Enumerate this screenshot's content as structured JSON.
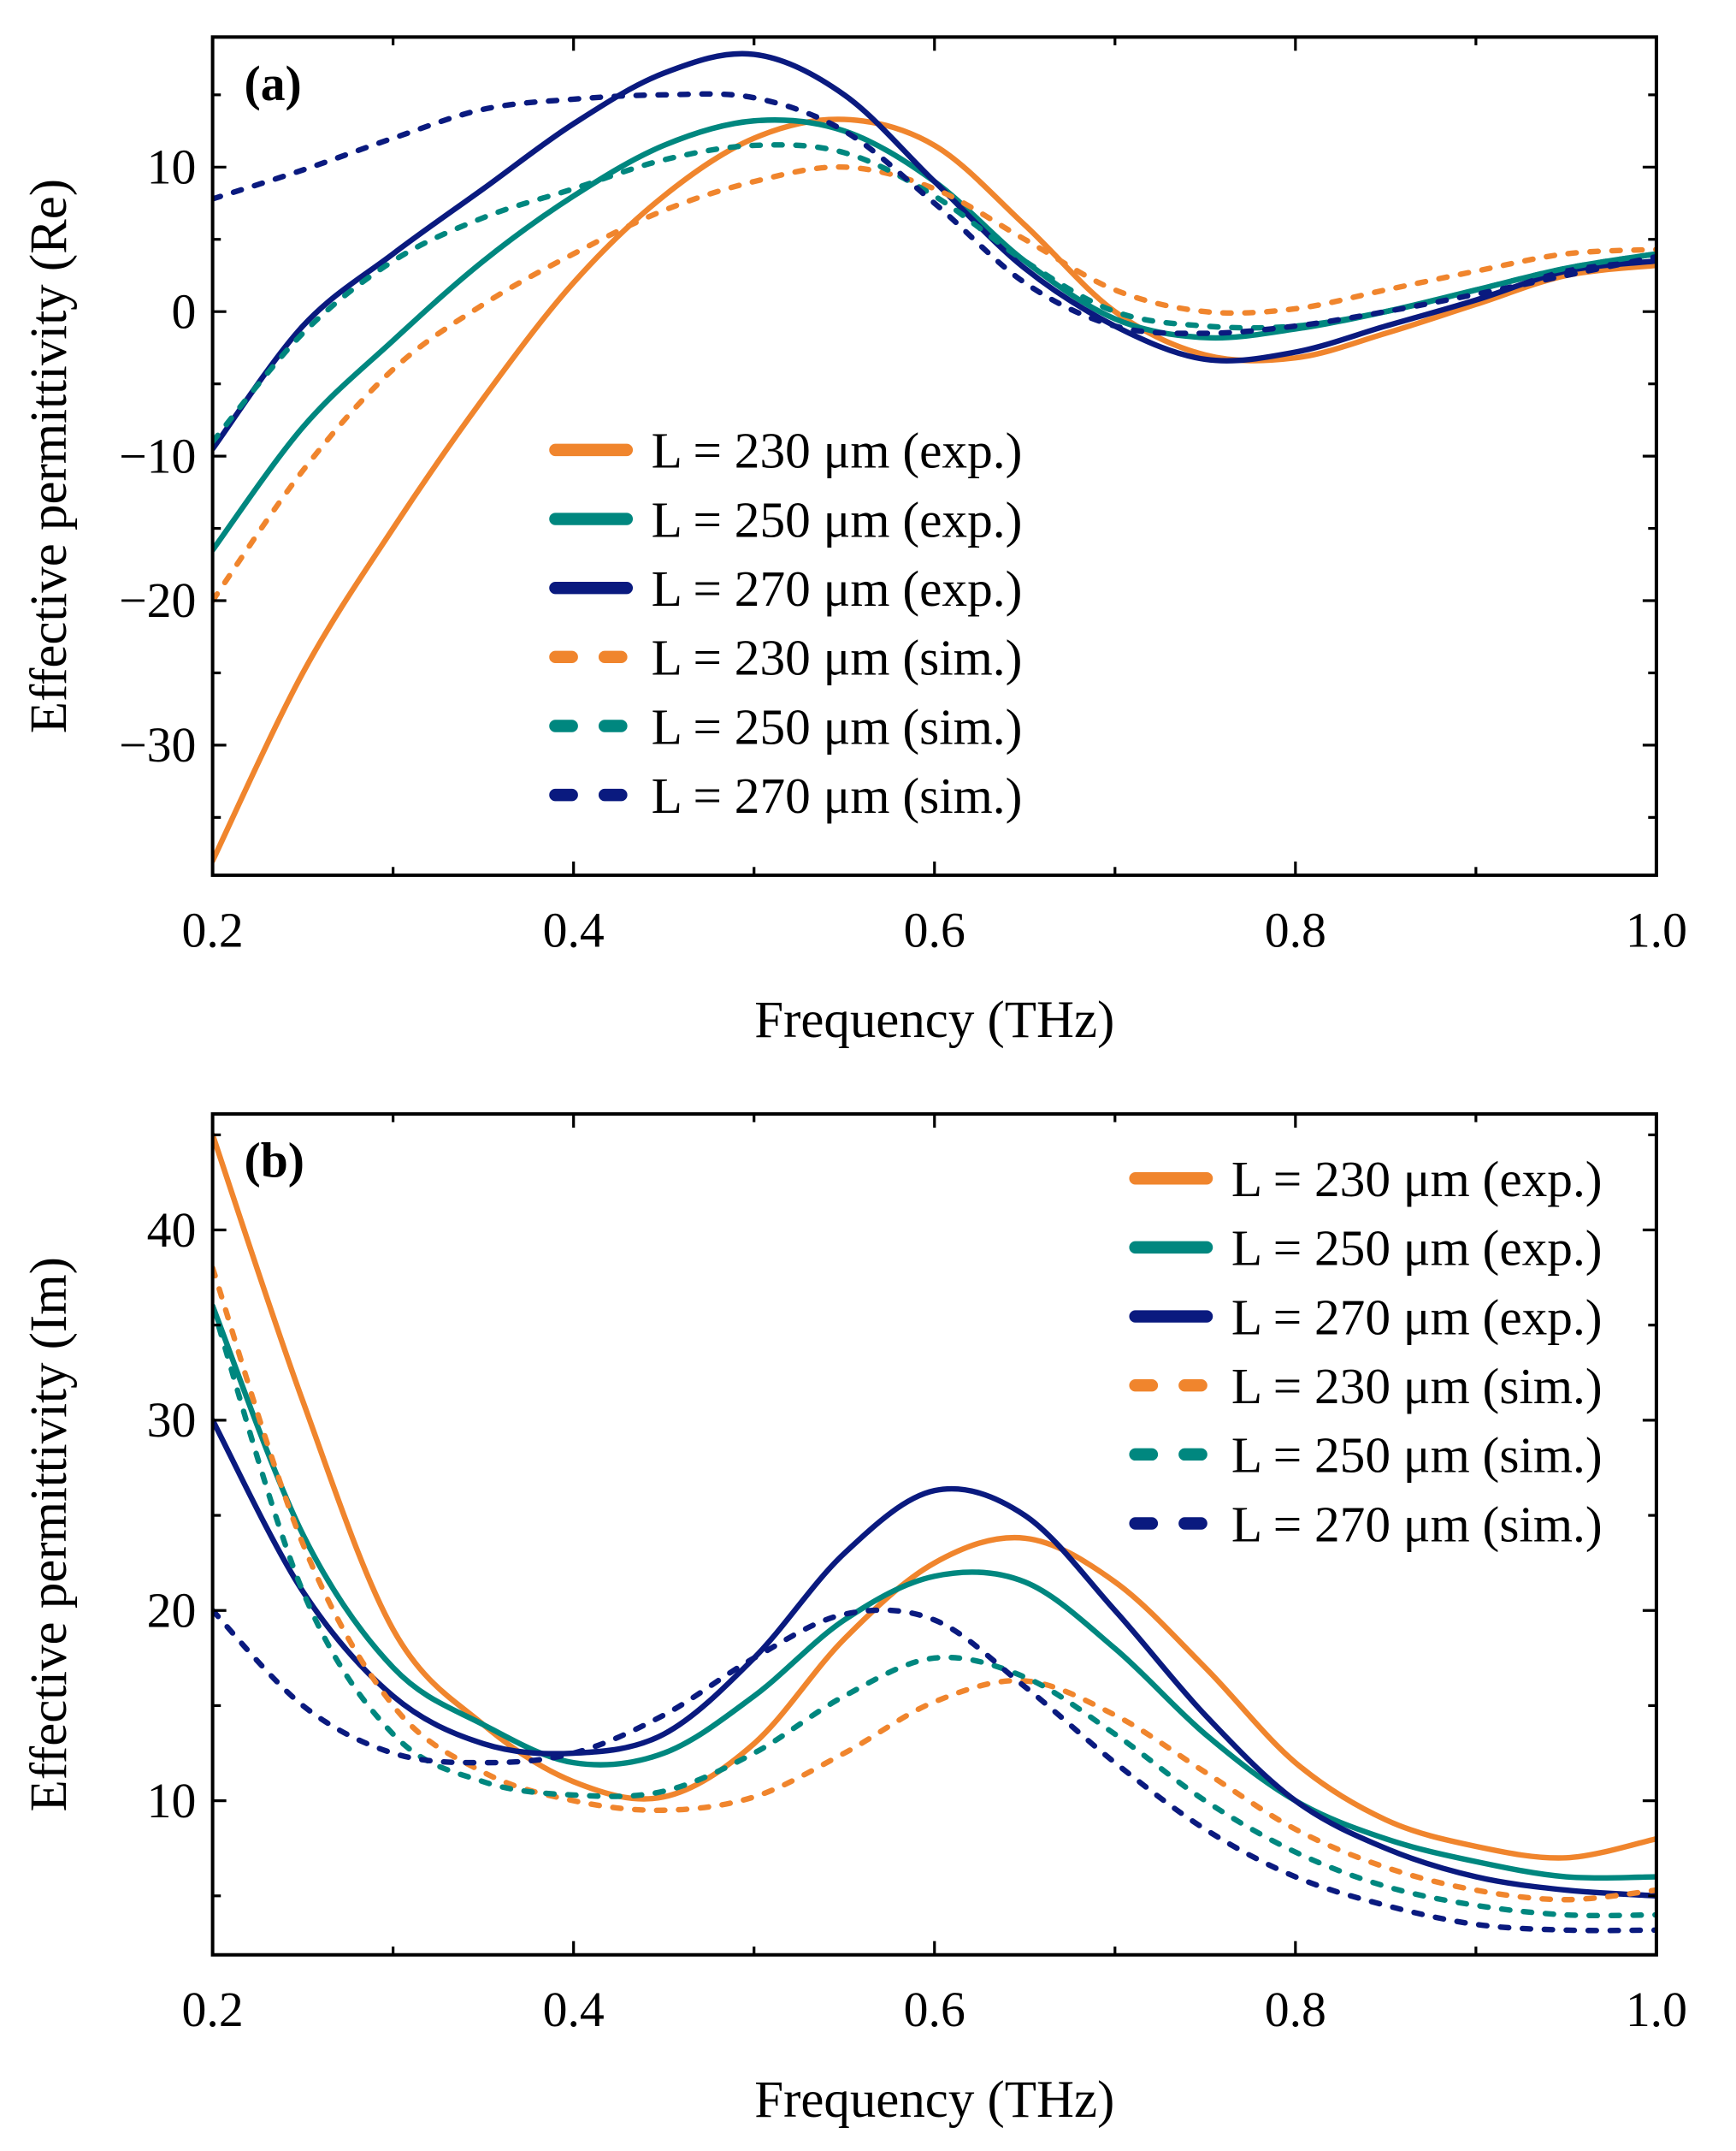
{
  "chart_data": [
    {
      "type": "line",
      "panel_label": "(a)",
      "xlabel": "Frequency (THz)",
      "ylabel": "Effective permittivity (Re)",
      "xlim": [
        0.2,
        1.0
      ],
      "ylim": [
        -39,
        19
      ],
      "xticks": [
        0.2,
        0.4,
        0.6,
        0.8,
        1.0
      ],
      "xtick_labels": [
        "0.2",
        "0.4",
        "0.6",
        "0.8",
        "1.0"
      ],
      "yticks": [
        -30,
        -20,
        -10,
        0,
        10
      ],
      "ytick_labels": [
        "−30",
        "−20",
        "−10",
        "0",
        "10"
      ],
      "legend_position": "center",
      "x": [
        0.2,
        0.25,
        0.3,
        0.35,
        0.4,
        0.45,
        0.5,
        0.55,
        0.6,
        0.65,
        0.7,
        0.75,
        0.8,
        0.85,
        0.9,
        0.95,
        1.0
      ],
      "series": [
        {
          "name": "L = 230 μm (exp.)",
          "color": "#F0852D",
          "dashed": false,
          "values": [
            -38,
            -25,
            -15,
            -6,
            2,
            8,
            12,
            13.3,
            11.5,
            6,
            0,
            -3,
            -3.2,
            -1.5,
            0.5,
            2.5,
            3.2
          ]
        },
        {
          "name": "L = 250 μm (exp.)",
          "color": "#00877F",
          "dashed": false,
          "values": [
            -16.5,
            -8,
            -2,
            3.5,
            8,
            11.5,
            13.2,
            12.5,
            9,
            3.5,
            -0.5,
            -1.8,
            -1.2,
            0,
            1.5,
            3,
            4
          ]
        },
        {
          "name": "L = 270 μm (exp.)",
          "color": "#0A1A7F",
          "dashed": false,
          "values": [
            -9.5,
            -1,
            4,
            8.5,
            13,
            16.5,
            17.8,
            15,
            9,
            3,
            -1,
            -3.3,
            -2.8,
            -1,
            0.8,
            2.8,
            3.5
          ]
        },
        {
          "name": "L = 230 μm (sim.)",
          "color": "#F0852D",
          "dashed": true,
          "values": [
            -20,
            -11,
            -4,
            0.5,
            4,
            7,
            9,
            10,
            8.5,
            5,
            1.5,
            0,
            0.2,
            1.5,
            2.8,
            4,
            4.3
          ]
        },
        {
          "name": "L = 250 μm (sim.)",
          "color": "#00877F",
          "dashed": true,
          "values": [
            -9,
            -1.5,
            3.5,
            6.5,
            8.5,
            10.5,
            11.5,
            11,
            8,
            3.5,
            0,
            -1,
            -1,
            0,
            1.5,
            3,
            4
          ]
        },
        {
          "name": "L = 270 μm (sim.)",
          "color": "#0A1A7F",
          "dashed": true,
          "values": [
            7.8,
            9.8,
            12,
            14,
            14.7,
            15,
            14.8,
            12.5,
            7.5,
            2,
            -1,
            -1.5,
            -1,
            0,
            1.2,
            2.5,
            3.8
          ]
        }
      ]
    },
    {
      "type": "line",
      "panel_label": "(b)",
      "xlabel": "Frequency (THz)",
      "ylabel": "Effective permittivity (Im)",
      "xlim": [
        0.2,
        1.0
      ],
      "ylim": [
        1.9,
        46.1
      ],
      "xticks": [
        0.2,
        0.4,
        0.6,
        0.8,
        1.0
      ],
      "xtick_labels": [
        "0.2",
        "0.4",
        "0.6",
        "0.8",
        "1.0"
      ],
      "yticks": [
        10,
        20,
        30,
        40
      ],
      "ytick_labels": [
        "10",
        "20",
        "30",
        "40"
      ],
      "legend_position": "top-right",
      "x": [
        0.2,
        0.25,
        0.3,
        0.35,
        0.4,
        0.45,
        0.5,
        0.55,
        0.6,
        0.65,
        0.7,
        0.75,
        0.8,
        0.85,
        0.9,
        0.95,
        1.0
      ],
      "series": [
        {
          "name": "L = 230 μm (exp.)",
          "color": "#F0852D",
          "dashed": false,
          "values": [
            45,
            31,
            19,
            14,
            11,
            10.2,
            13,
            18.5,
            22.5,
            23.8,
            21.5,
            17,
            12,
            9,
            7.6,
            7,
            8
          ]
        },
        {
          "name": "L = 250 μm (exp.)",
          "color": "#00877F",
          "dashed": false,
          "values": [
            36,
            24,
            17,
            14,
            12,
            12.5,
            15.5,
            19.5,
            21.8,
            21.5,
            18,
            13.5,
            10,
            8,
            6.8,
            6,
            6
          ]
        },
        {
          "name": "L = 270 μm (exp.)",
          "color": "#0A1A7F",
          "dashed": false,
          "values": [
            30,
            21,
            15.5,
            13,
            12.5,
            13.5,
            17.5,
            23,
            26.3,
            25,
            20,
            14.5,
            10,
            7.5,
            6,
            5.3,
            5
          ]
        },
        {
          "name": "L = 230 μm (sim.)",
          "color": "#F0852D",
          "dashed": true,
          "values": [
            38,
            23.5,
            15,
            11.5,
            10,
            9.5,
            10.2,
            12.5,
            15.2,
            16.3,
            14.5,
            11.5,
            8.5,
            6.5,
            5.3,
            4.8,
            5.3
          ]
        },
        {
          "name": "L = 250 μm (sim.)",
          "color": "#00877F",
          "dashed": true,
          "values": [
            36,
            21,
            13.5,
            11,
            10.3,
            10.5,
            12.5,
            15.5,
            17.5,
            16.5,
            13.5,
            10,
            7.3,
            5.5,
            4.5,
            4,
            4
          ]
        },
        {
          "name": "L = 270 μm (sim.)",
          "color": "#0A1A7F",
          "dashed": true,
          "values": [
            20,
            15,
            12.5,
            12,
            12.5,
            14.5,
            17.5,
            19.8,
            19.5,
            16,
            12,
            8.5,
            6,
            4.5,
            3.5,
            3.2,
            3.2
          ]
        }
      ]
    }
  ]
}
